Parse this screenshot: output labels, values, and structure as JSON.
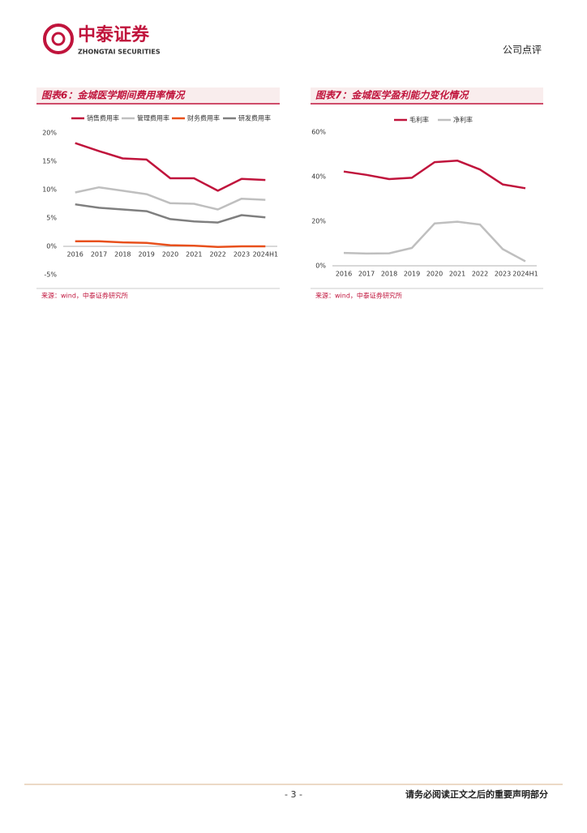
{
  "header": {
    "logo_cn": "中泰证券",
    "logo_en": "ZHONGTAI SECURITIES",
    "report_type": "公司点评"
  },
  "chart_data": [
    {
      "type": "line",
      "title": "图表6：金城医学期间费用率情况",
      "categories": [
        "2016",
        "2017",
        "2018",
        "2019",
        "2020",
        "2021",
        "2022",
        "2023",
        "2024H1"
      ],
      "series": [
        {
          "name": "销售费用率",
          "color": "#c0143c",
          "values": [
            18.2,
            16.8,
            15.5,
            15.3,
            12.0,
            12.0,
            9.8,
            11.9,
            11.7
          ]
        },
        {
          "name": "管理费用率",
          "color": "#bfbfbf",
          "values": [
            9.5,
            10.4,
            9.8,
            9.2,
            7.6,
            7.5,
            6.5,
            8.4,
            8.2
          ]
        },
        {
          "name": "财务费用率",
          "color": "#e8501c",
          "values": [
            0.9,
            0.9,
            0.7,
            0.6,
            0.2,
            0.1,
            -0.1,
            0.0,
            0.0
          ]
        },
        {
          "name": "研发费用率",
          "color": "#7f7f7f",
          "values": [
            7.4,
            6.8,
            6.5,
            6.2,
            4.8,
            4.4,
            4.2,
            5.5,
            5.1
          ]
        }
      ],
      "ylim": [
        -5,
        20
      ],
      "yticks": [
        {
          "value": -5,
          "label": "-5%"
        },
        {
          "value": 0,
          "label": "0%"
        },
        {
          "value": 5,
          "label": "5%"
        },
        {
          "value": 10,
          "label": "10%"
        },
        {
          "value": 15,
          "label": "15%"
        },
        {
          "value": 20,
          "label": "20%"
        }
      ],
      "source": "来源：wind，中泰证券研究所"
    },
    {
      "type": "line",
      "title": "图表7：金城医学盈利能力变化情况",
      "categories": [
        "2016",
        "2017",
        "2018",
        "2019",
        "2020",
        "2021",
        "2022",
        "2023",
        "2024H1"
      ],
      "series": [
        {
          "name": "毛利率",
          "color": "#c0143c",
          "values": [
            42.3,
            40.8,
            38.9,
            39.5,
            46.5,
            47.2,
            43.2,
            36.5,
            34.8
          ]
        },
        {
          "name": "净利率",
          "color": "#bfbfbf",
          "values": [
            5.8,
            5.5,
            5.6,
            8.0,
            19.0,
            19.8,
            18.5,
            7.5,
            2.0
          ]
        }
      ],
      "ylim": [
        0,
        60
      ],
      "yticks": [
        {
          "value": 0,
          "label": "0%"
        },
        {
          "value": 20,
          "label": "20%"
        },
        {
          "value": 40,
          "label": "40%"
        },
        {
          "value": 60,
          "label": "60%"
        }
      ],
      "source": "来源：wind，中泰证券研究所"
    }
  ],
  "footer": {
    "page": "- 3 -",
    "disclaimer": "请务必阅读正文之后的重要声明部分"
  }
}
